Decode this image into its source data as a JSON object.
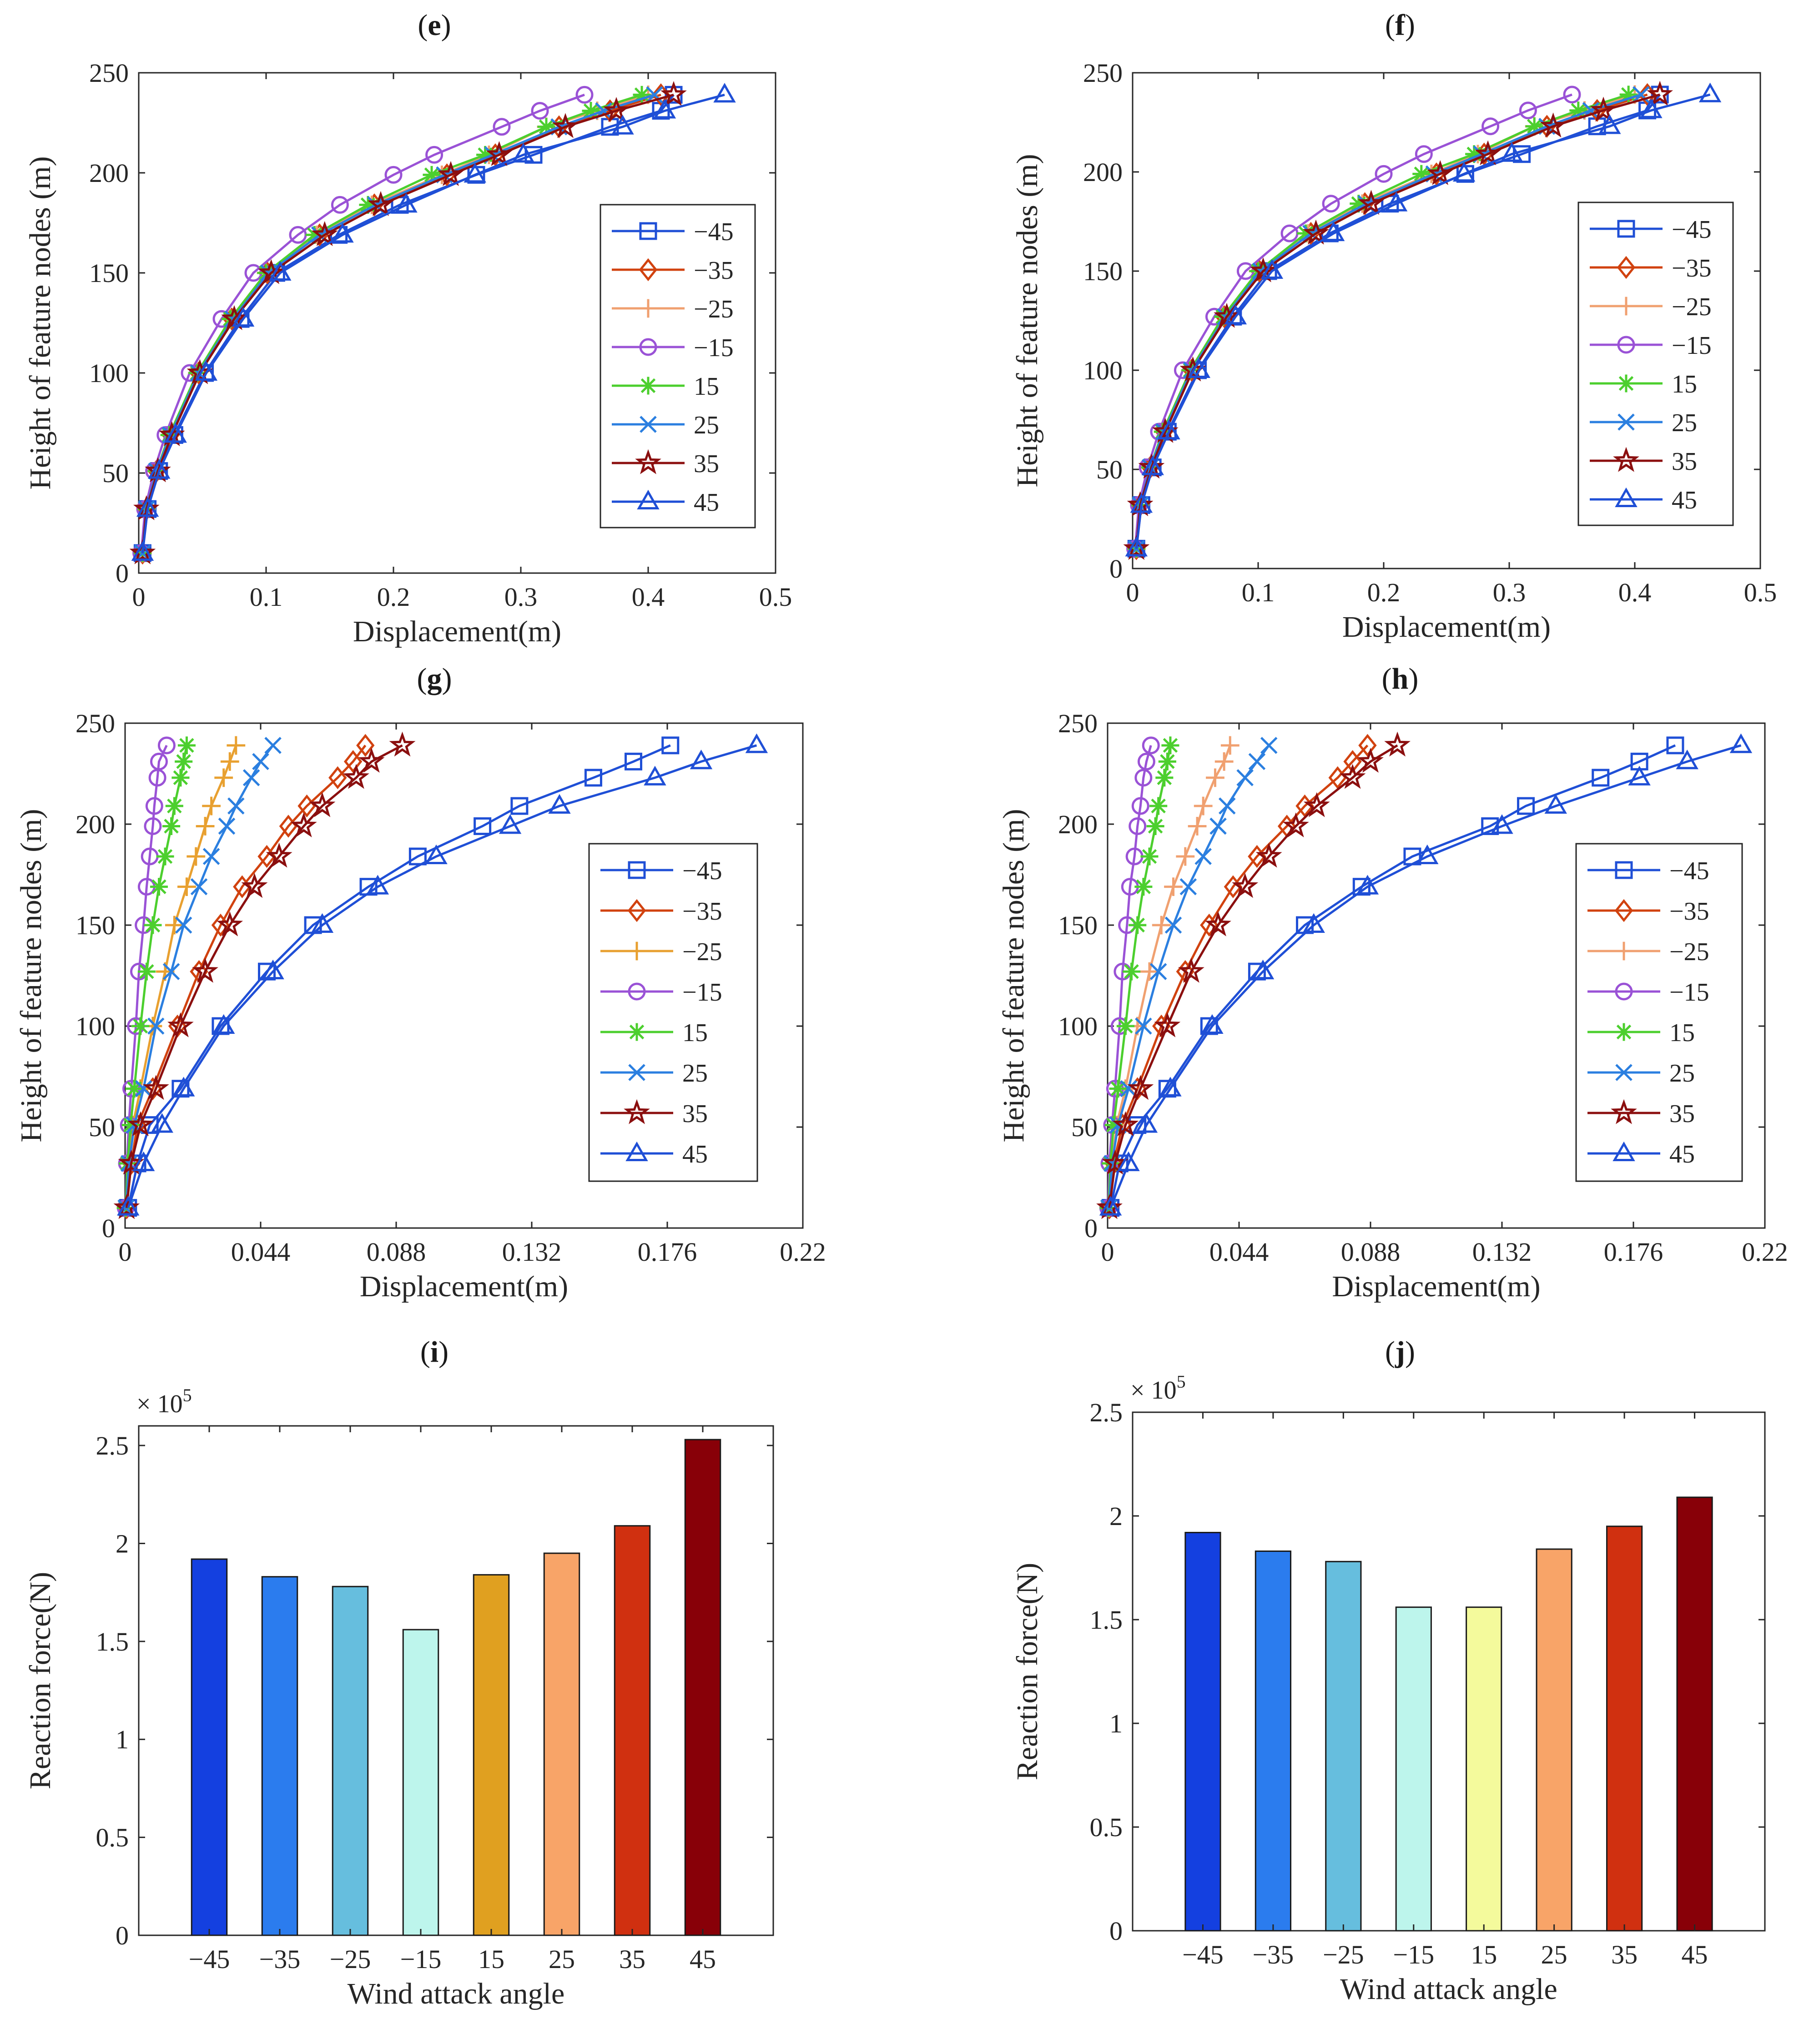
{
  "panel_labels": {
    "e": "e",
    "f": "f",
    "g": "g",
    "h": "h",
    "i": "i",
    "j": "j"
  },
  "chart_data": [
    {
      "id": "e",
      "type": "line",
      "title": "(e)",
      "xlabel": "Displacement(m)",
      "ylabel": "Height of feature nodes (m)",
      "xlim": [
        0,
        0.5
      ],
      "ylim": [
        0,
        250
      ],
      "xticks": [
        0,
        0.1,
        0.2,
        0.3,
        0.4,
        0.5
      ],
      "xtick_labels": [
        "0",
        "0.1",
        "0.2",
        "0.3",
        "0.4",
        "0.5"
      ],
      "yticks": [
        0,
        50,
        100,
        150,
        200,
        250
      ],
      "ytick_labels": [
        "0",
        "50",
        "100",
        "150",
        "200",
        "250"
      ],
      "y": [
        10,
        32,
        51,
        69,
        100,
        127,
        150,
        169,
        184,
        199,
        209,
        223,
        231,
        239
      ],
      "legend_position": "center-right",
      "series": [
        {
          "name": "−45",
          "marker": "square",
          "color": "#1f4fd6",
          "x": [
            0.003,
            0.007,
            0.016,
            0.028,
            0.052,
            0.08,
            0.108,
            0.157,
            0.205,
            0.265,
            0.31,
            0.37,
            0.41,
            0.42
          ]
        },
        {
          "name": "−35",
          "marker": "diamond",
          "color": "#d1420f",
          "x": [
            0.003,
            0.006,
            0.014,
            0.025,
            0.047,
            0.073,
            0.101,
            0.142,
            0.185,
            0.242,
            0.28,
            0.33,
            0.37,
            0.41
          ]
        },
        {
          "name": "−25",
          "marker": "plus",
          "color": "#f0a070",
          "x": [
            0.003,
            0.006,
            0.014,
            0.025,
            0.046,
            0.072,
            0.1,
            0.14,
            0.183,
            0.238,
            0.275,
            0.32,
            0.36,
            0.4
          ]
        },
        {
          "name": "−15",
          "marker": "circle",
          "color": "#9a52d6",
          "x": [
            0.002,
            0.005,
            0.012,
            0.021,
            0.04,
            0.065,
            0.09,
            0.125,
            0.158,
            0.2,
            0.232,
            0.285,
            0.315,
            0.35
          ]
        },
        {
          "name": "15",
          "marker": "asterisk",
          "color": "#4ccf2e",
          "x": [
            0.003,
            0.006,
            0.014,
            0.024,
            0.046,
            0.072,
            0.1,
            0.138,
            0.18,
            0.23,
            0.272,
            0.32,
            0.355,
            0.395
          ]
        },
        {
          "name": "25",
          "marker": "x",
          "color": "#2b7fe0",
          "x": [
            0.003,
            0.006,
            0.014,
            0.025,
            0.047,
            0.074,
            0.102,
            0.142,
            0.186,
            0.24,
            0.278,
            0.33,
            0.365,
            0.405
          ]
        },
        {
          "name": "35",
          "marker": "star",
          "color": "#8b0f0f",
          "x": [
            0.003,
            0.006,
            0.015,
            0.026,
            0.048,
            0.075,
            0.104,
            0.146,
            0.19,
            0.245,
            0.283,
            0.335,
            0.375,
            0.42
          ]
        },
        {
          "name": "45",
          "marker": "triangle",
          "color": "#1f4fd6",
          "x": [
            0.003,
            0.007,
            0.016,
            0.029,
            0.053,
            0.082,
            0.111,
            0.16,
            0.21,
            0.264,
            0.302,
            0.38,
            0.413,
            0.46
          ]
        }
      ]
    },
    {
      "id": "f",
      "type": "line",
      "title": "(f)",
      "xlabel": "Displacement(m)",
      "ylabel": "Height of feature nodes (m)",
      "xlim": [
        0,
        0.5
      ],
      "ylim": [
        0,
        250
      ],
      "xticks": [
        0,
        0.1,
        0.2,
        0.3,
        0.4,
        0.5
      ],
      "xtick_labels": [
        "0",
        "0.1",
        "0.2",
        "0.3",
        "0.4",
        "0.5"
      ],
      "yticks": [
        0,
        50,
        100,
        150,
        200,
        250
      ],
      "ytick_labels": [
        "0",
        "50",
        "100",
        "150",
        "200",
        "250"
      ],
      "y": [
        10,
        32,
        51,
        69,
        100,
        127,
        150,
        169,
        184,
        199,
        209,
        223,
        231,
        239
      ],
      "legend_position": "center-right",
      "series": [
        {
          "name": "−45",
          "marker": "square",
          "color": "#1f4fd6",
          "x": [
            0.003,
            0.007,
            0.016,
            0.028,
            0.052,
            0.08,
            0.108,
            0.157,
            0.205,
            0.265,
            0.31,
            0.37,
            0.41,
            0.42
          ]
        },
        {
          "name": "−35",
          "marker": "diamond",
          "color": "#d1420f",
          "x": [
            0.003,
            0.006,
            0.014,
            0.025,
            0.047,
            0.073,
            0.101,
            0.142,
            0.185,
            0.242,
            0.28,
            0.33,
            0.37,
            0.41
          ]
        },
        {
          "name": "−25",
          "marker": "plus",
          "color": "#f0a070",
          "x": [
            0.003,
            0.006,
            0.014,
            0.025,
            0.046,
            0.072,
            0.1,
            0.14,
            0.183,
            0.238,
            0.275,
            0.32,
            0.36,
            0.4
          ]
        },
        {
          "name": "−15",
          "marker": "circle",
          "color": "#9a52d6",
          "x": [
            0.002,
            0.005,
            0.012,
            0.021,
            0.04,
            0.065,
            0.09,
            0.125,
            0.158,
            0.2,
            0.232,
            0.285,
            0.315,
            0.35
          ]
        },
        {
          "name": "15",
          "marker": "asterisk",
          "color": "#4ccf2e",
          "x": [
            0.003,
            0.006,
            0.014,
            0.024,
            0.046,
            0.072,
            0.1,
            0.138,
            0.18,
            0.23,
            0.272,
            0.32,
            0.355,
            0.395
          ]
        },
        {
          "name": "25",
          "marker": "x",
          "color": "#2b7fe0",
          "x": [
            0.003,
            0.006,
            0.014,
            0.025,
            0.047,
            0.074,
            0.102,
            0.142,
            0.186,
            0.24,
            0.278,
            0.33,
            0.365,
            0.405
          ]
        },
        {
          "name": "35",
          "marker": "star",
          "color": "#8b0f0f",
          "x": [
            0.003,
            0.006,
            0.015,
            0.026,
            0.048,
            0.075,
            0.104,
            0.146,
            0.19,
            0.245,
            0.283,
            0.335,
            0.375,
            0.42
          ]
        },
        {
          "name": "45",
          "marker": "triangle",
          "color": "#1f4fd6",
          "x": [
            0.003,
            0.007,
            0.016,
            0.029,
            0.053,
            0.082,
            0.111,
            0.16,
            0.21,
            0.264,
            0.302,
            0.38,
            0.413,
            0.46
          ]
        }
      ]
    },
    {
      "id": "g",
      "type": "line",
      "title": "(g)",
      "xlabel": "Displacement(m)",
      "ylabel": "Height of feature nodes (m)",
      "xlim": [
        0,
        0.22
      ],
      "ylim": [
        0,
        250
      ],
      "xticks": [
        0,
        0.044,
        0.088,
        0.132,
        0.176,
        0.22
      ],
      "xtick_labels": [
        "0",
        "0.044",
        "0.088",
        "0.132",
        "0.176",
        "0.22"
      ],
      "yticks": [
        0,
        50,
        100,
        150,
        200,
        250
      ],
      "ytick_labels": [
        "0",
        "50",
        "100",
        "150",
        "200",
        "250"
      ],
      "y": [
        10,
        32,
        51,
        69,
        100,
        127,
        150,
        169,
        184,
        199,
        209,
        223,
        231,
        239
      ],
      "legend_position": "center-right",
      "series": [
        {
          "name": "−45",
          "marker": "square",
          "color": "#1f4fd6",
          "x": [
            0.001,
            0.004,
            0.008,
            0.018,
            0.031,
            0.046,
            0.061,
            0.079,
            0.095,
            0.116,
            0.128,
            0.152,
            0.165,
            0.177
          ]
        },
        {
          "name": "−35",
          "marker": "diamond",
          "color": "#d1420f",
          "x": [
            0.0005,
            0.002,
            0.004,
            0.009,
            0.017,
            0.024,
            0.031,
            0.038,
            0.046,
            0.053,
            0.059,
            0.069,
            0.074,
            0.078
          ]
        },
        {
          "name": "−25",
          "marker": "plus",
          "color": "#e8a030",
          "x": [
            0.0003,
            0.0012,
            0.0025,
            0.005,
            0.009,
            0.013,
            0.016,
            0.02,
            0.023,
            0.026,
            0.028,
            0.032,
            0.034,
            0.036
          ]
        },
        {
          "name": "−15",
          "marker": "circle",
          "color": "#9a52d6",
          "x": [
            0.0002,
            0.0006,
            0.0012,
            0.002,
            0.0035,
            0.0045,
            0.006,
            0.007,
            0.008,
            0.009,
            0.0095,
            0.0105,
            0.011,
            0.0135
          ]
        },
        {
          "name": "15",
          "marker": "asterisk",
          "color": "#4ccf2e",
          "x": [
            0.0002,
            0.0008,
            0.0018,
            0.003,
            0.005,
            0.007,
            0.009,
            0.011,
            0.013,
            0.015,
            0.016,
            0.018,
            0.019,
            0.02
          ]
        },
        {
          "name": "25",
          "marker": "x",
          "color": "#2b7fe0",
          "x": [
            0.0003,
            0.0013,
            0.003,
            0.006,
            0.01,
            0.015,
            0.019,
            0.024,
            0.028,
            0.033,
            0.036,
            0.041,
            0.044,
            0.048
          ]
        },
        {
          "name": "35",
          "marker": "star",
          "color": "#8b0f0f",
          "x": [
            0.0005,
            0.002,
            0.005,
            0.01,
            0.018,
            0.026,
            0.034,
            0.042,
            0.05,
            0.058,
            0.064,
            0.075,
            0.08,
            0.09
          ]
        },
        {
          "name": "45",
          "marker": "triangle",
          "color": "#1f4fd6",
          "x": [
            0.001,
            0.006,
            0.012,
            0.019,
            0.032,
            0.048,
            0.064,
            0.082,
            0.101,
            0.125,
            0.141,
            0.172,
            0.187,
            0.205
          ]
        }
      ]
    },
    {
      "id": "h",
      "type": "line",
      "title": "(h)",
      "xlabel": "Displacement(m)",
      "ylabel": "Height of feature nodes (m)",
      "xlim": [
        0,
        0.22
      ],
      "ylim": [
        0,
        250
      ],
      "xticks": [
        0,
        0.044,
        0.088,
        0.132,
        0.176,
        0.22
      ],
      "xtick_labels": [
        "0",
        "0.044",
        "0.088",
        "0.132",
        "0.176",
        "0.22"
      ],
      "yticks": [
        0,
        50,
        100,
        150,
        200,
        250
      ],
      "ytick_labels": [
        "0",
        "50",
        "100",
        "150",
        "200",
        "250"
      ],
      "y": [
        10,
        32,
        51,
        69,
        100,
        127,
        150,
        169,
        184,
        199,
        209,
        223,
        231,
        239
      ],
      "legend_position": "center-right",
      "series": [
        {
          "name": "−45",
          "marker": "square",
          "color": "#1f4fd6",
          "x": [
            0.001,
            0.004,
            0.01,
            0.02,
            0.034,
            0.05,
            0.066,
            0.085,
            0.102,
            0.128,
            0.14,
            0.165,
            0.178,
            0.19
          ]
        },
        {
          "name": "−35",
          "marker": "diamond",
          "color": "#d1420f",
          "x": [
            0.0006,
            0.002,
            0.005,
            0.01,
            0.018,
            0.026,
            0.034,
            0.042,
            0.05,
            0.06,
            0.066,
            0.077,
            0.082,
            0.087
          ]
        },
        {
          "name": "−25",
          "marker": "plus",
          "color": "#f0a070",
          "x": [
            0.0004,
            0.0015,
            0.003,
            0.006,
            0.01,
            0.014,
            0.018,
            0.022,
            0.026,
            0.03,
            0.032,
            0.036,
            0.039,
            0.041
          ]
        },
        {
          "name": "−15",
          "marker": "circle",
          "color": "#9a52d6",
          "x": [
            0.0002,
            0.0006,
            0.0015,
            0.0025,
            0.004,
            0.005,
            0.0065,
            0.0075,
            0.009,
            0.01,
            0.011,
            0.012,
            0.013,
            0.0145
          ]
        },
        {
          "name": "15",
          "marker": "asterisk",
          "color": "#4ccf2e",
          "x": [
            0.0003,
            0.001,
            0.002,
            0.0035,
            0.006,
            0.008,
            0.01,
            0.012,
            0.014,
            0.016,
            0.017,
            0.019,
            0.02,
            0.021
          ]
        },
        {
          "name": "25",
          "marker": "x",
          "color": "#2b7fe0",
          "x": [
            0.0004,
            0.0015,
            0.0035,
            0.007,
            0.012,
            0.017,
            0.022,
            0.027,
            0.032,
            0.037,
            0.04,
            0.046,
            0.05,
            0.054
          ]
        },
        {
          "name": "35",
          "marker": "star",
          "color": "#8b0f0f",
          "x": [
            0.0006,
            0.0025,
            0.006,
            0.011,
            0.02,
            0.028,
            0.037,
            0.046,
            0.054,
            0.063,
            0.07,
            0.082,
            0.088,
            0.097
          ]
        },
        {
          "name": "45",
          "marker": "triangle",
          "color": "#1f4fd6",
          "x": [
            0.001,
            0.007,
            0.013,
            0.021,
            0.035,
            0.052,
            0.069,
            0.087,
            0.107,
            0.132,
            0.15,
            0.178,
            0.194,
            0.212
          ]
        }
      ]
    },
    {
      "id": "i",
      "type": "bar",
      "title": "(i)",
      "xlabel": "Wind attack angle",
      "ylabel": "Reaction force(N)",
      "exponent_label": "× 10",
      "exponent_power": "5",
      "ylim": [
        0,
        2.6
      ],
      "yticks": [
        0,
        0.5,
        1,
        1.5,
        2,
        2.5
      ],
      "ytick_labels": [
        "0",
        "0.5",
        "1",
        "1.5",
        "2",
        "2.5"
      ],
      "categories": [
        "−45",
        "−35",
        "−25",
        "−15",
        "15",
        "25",
        "35",
        "45"
      ],
      "values": [
        1.92,
        1.83,
        1.78,
        1.56,
        1.84,
        1.95,
        2.09,
        2.53
      ],
      "colors": [
        "#1440e0",
        "#2b7cee",
        "#66bede",
        "#bdf5ec",
        "#e0a020",
        "#f8a468",
        "#d03010",
        "#880008"
      ]
    },
    {
      "id": "j",
      "type": "bar",
      "title": "(j)",
      "xlabel": "Wind attack angle",
      "ylabel": "Reaction force(N)",
      "exponent_label": "× 10",
      "exponent_power": "5",
      "ylim": [
        0,
        2.5
      ],
      "yticks": [
        0,
        0.5,
        1,
        1.5,
        2,
        2.5
      ],
      "ytick_labels": [
        "0",
        "0.5",
        "1",
        "1.5",
        "2",
        "2.5"
      ],
      "categories": [
        "−45",
        "−35",
        "−25",
        "−15",
        "15",
        "25",
        "35",
        "45"
      ],
      "values": [
        1.92,
        1.83,
        1.78,
        1.56,
        1.56,
        1.84,
        1.95,
        2.09
      ],
      "colors": [
        "#1440e0",
        "#2b7cee",
        "#66bede",
        "#bdf5ec",
        "#f4fa9c",
        "#f8a468",
        "#d03010",
        "#880008"
      ]
    }
  ]
}
